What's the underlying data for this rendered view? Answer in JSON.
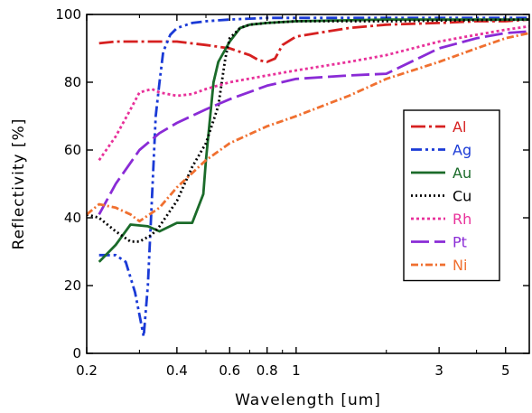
{
  "chart_data": {
    "type": "line",
    "title": "",
    "xlabel": "Wavelength [um]",
    "ylabel": "Reflectivity [%]",
    "xscale": "log",
    "xlim": [
      0.2,
      6.0
    ],
    "ylim": [
      0,
      100
    ],
    "x_ticks": [
      0.2,
      0.4,
      0.6,
      0.8,
      1,
      3,
      5
    ],
    "x_tick_labels": [
      "0.2",
      "0.4",
      "0.6",
      "0.8",
      "1",
      "3",
      "5"
    ],
    "y_ticks": [
      0,
      20,
      40,
      60,
      80,
      100
    ],
    "y_tick_labels": [
      "0",
      "20",
      "40",
      "60",
      "80",
      "100"
    ],
    "grid": false,
    "legend_position": "right",
    "series": [
      {
        "name": "Al",
        "color": "#d62020",
        "dash": "16,4,3,4",
        "x": [
          0.22,
          0.25,
          0.3,
          0.35,
          0.4,
          0.5,
          0.6,
          0.7,
          0.75,
          0.8,
          0.85,
          0.9,
          1.0,
          1.5,
          2,
          3,
          4,
          5,
          6
        ],
        "y": [
          91.5,
          92,
          92,
          92,
          92,
          91,
          90,
          88,
          86.5,
          86,
          87,
          91,
          93.5,
          96,
          97,
          97.5,
          98,
          98,
          98.5
        ]
      },
      {
        "name": "Ag",
        "color": "#1a3ad6",
        "dash": "12,4,3,4,3,4",
        "x": [
          0.22,
          0.25,
          0.27,
          0.29,
          0.31,
          0.32,
          0.33,
          0.34,
          0.35,
          0.36,
          0.38,
          0.4,
          0.45,
          0.5,
          0.6,
          0.8,
          1.0,
          2,
          6
        ],
        "y": [
          29,
          29,
          27,
          18,
          5,
          20,
          45,
          70,
          80,
          89,
          94,
          96,
          97.5,
          98,
          98.5,
          99,
          99,
          99,
          99
        ]
      },
      {
        "name": "Au",
        "color": "#1b6b2a",
        "dash": "",
        "x": [
          0.22,
          0.25,
          0.28,
          0.32,
          0.35,
          0.4,
          0.45,
          0.49,
          0.5,
          0.53,
          0.55,
          0.6,
          0.65,
          0.7,
          0.8,
          1.0,
          2,
          6
        ],
        "y": [
          27,
          32,
          38,
          37.5,
          36,
          38.5,
          38.5,
          47,
          57,
          80,
          86,
          92,
          96,
          97,
          97.5,
          98,
          98.5,
          98.5
        ]
      },
      {
        "name": "Cu",
        "color": "#000000",
        "dash": "2,3",
        "x": [
          0.2,
          0.22,
          0.25,
          0.28,
          0.3,
          0.33,
          0.35,
          0.4,
          0.45,
          0.5,
          0.55,
          0.58,
          0.6,
          0.65,
          0.7,
          0.8,
          1.0,
          2,
          6
        ],
        "y": [
          41,
          40,
          36,
          33,
          33,
          35,
          37.5,
          45,
          55,
          62,
          73,
          87,
          93,
          96,
          97,
          97.5,
          98,
          98,
          98.5
        ]
      },
      {
        "name": "Rh",
        "color": "#e8319a",
        "dash": "3,3",
        "x": [
          0.22,
          0.25,
          0.28,
          0.3,
          0.33,
          0.35,
          0.4,
          0.45,
          0.5,
          0.6,
          0.8,
          1.0,
          1.5,
          2,
          3,
          4,
          5,
          6
        ],
        "y": [
          57,
          64,
          72,
          77,
          78,
          77,
          76,
          76.5,
          78,
          80,
          82,
          83.5,
          86,
          88,
          92,
          94,
          95.5,
          96.5
        ]
      },
      {
        "name": "Pt",
        "color": "#8a2bd6",
        "dash": "20,6",
        "x": [
          0.22,
          0.25,
          0.3,
          0.35,
          0.4,
          0.5,
          0.6,
          0.8,
          1.0,
          1.5,
          2,
          3,
          4,
          5,
          6
        ],
        "y": [
          41,
          50,
          60,
          65,
          68,
          72,
          75,
          79,
          81,
          82,
          82.5,
          90,
          93,
          94.5,
          95
        ]
      },
      {
        "name": "Ni",
        "color": "#f07030",
        "dash": "8,3,2,3",
        "x": [
          0.2,
          0.22,
          0.25,
          0.28,
          0.3,
          0.35,
          0.4,
          0.5,
          0.6,
          0.8,
          1.0,
          1.5,
          2,
          3,
          4,
          5,
          6
        ],
        "y": [
          41,
          44,
          43,
          41,
          39,
          43,
          49,
          57,
          62,
          67,
          70,
          76,
          81,
          86,
          90,
          93,
          94.5
        ]
      }
    ]
  }
}
